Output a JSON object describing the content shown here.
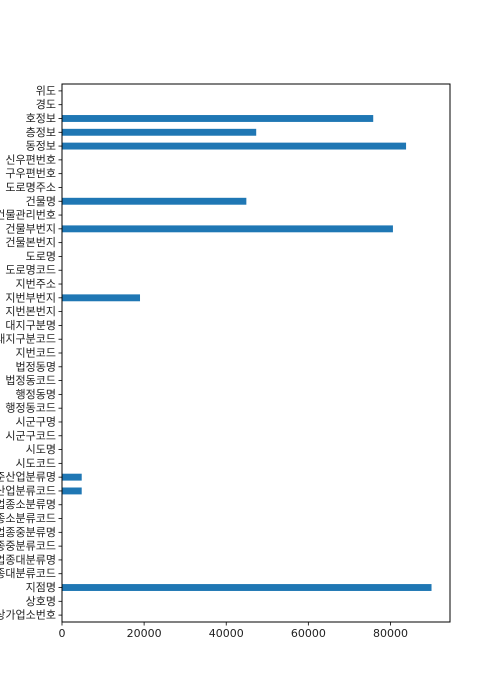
{
  "chart_data": {
    "type": "bar",
    "orientation": "horizontal",
    "categories": [
      "상가업소번호",
      "상호명",
      "지점명",
      "상권업종대분류코드",
      "상권업종대분류명",
      "상권업종중분류코드",
      "상권업종중분류명",
      "상권업종소분류코드",
      "상권업종소분류명",
      "표준산업분류코드",
      "표준산업분류명",
      "시도코드",
      "시도명",
      "시군구코드",
      "시군구명",
      "행정동코드",
      "행정동명",
      "법정동코드",
      "법정동명",
      "지번코드",
      "대지구분코드",
      "대지구분명",
      "지번본번지",
      "지번부번지",
      "지번주소",
      "도로명코드",
      "도로명",
      "건물본번지",
      "건물부번지",
      "건물관리번호",
      "건물명",
      "도로명주소",
      "구우편번호",
      "신우편번호",
      "동정보",
      "층정보",
      "호정보",
      "경도",
      "위도"
    ],
    "values": [
      0,
      0,
      90000,
      0,
      0,
      0,
      0,
      0,
      0,
      4800,
      4800,
      0,
      0,
      0,
      0,
      0,
      0,
      0,
      0,
      0,
      0,
      0,
      0,
      19000,
      0,
      0,
      0,
      0,
      80600,
      0,
      44900,
      0,
      0,
      0,
      83800,
      47300,
      75800,
      0,
      0
    ],
    "xlim": [
      0,
      94500
    ],
    "xticks": [
      0,
      20000,
      40000,
      60000,
      80000
    ],
    "xlabel": "",
    "ylabel": "",
    "title": "",
    "grid": false,
    "color": "#1f77b4"
  }
}
